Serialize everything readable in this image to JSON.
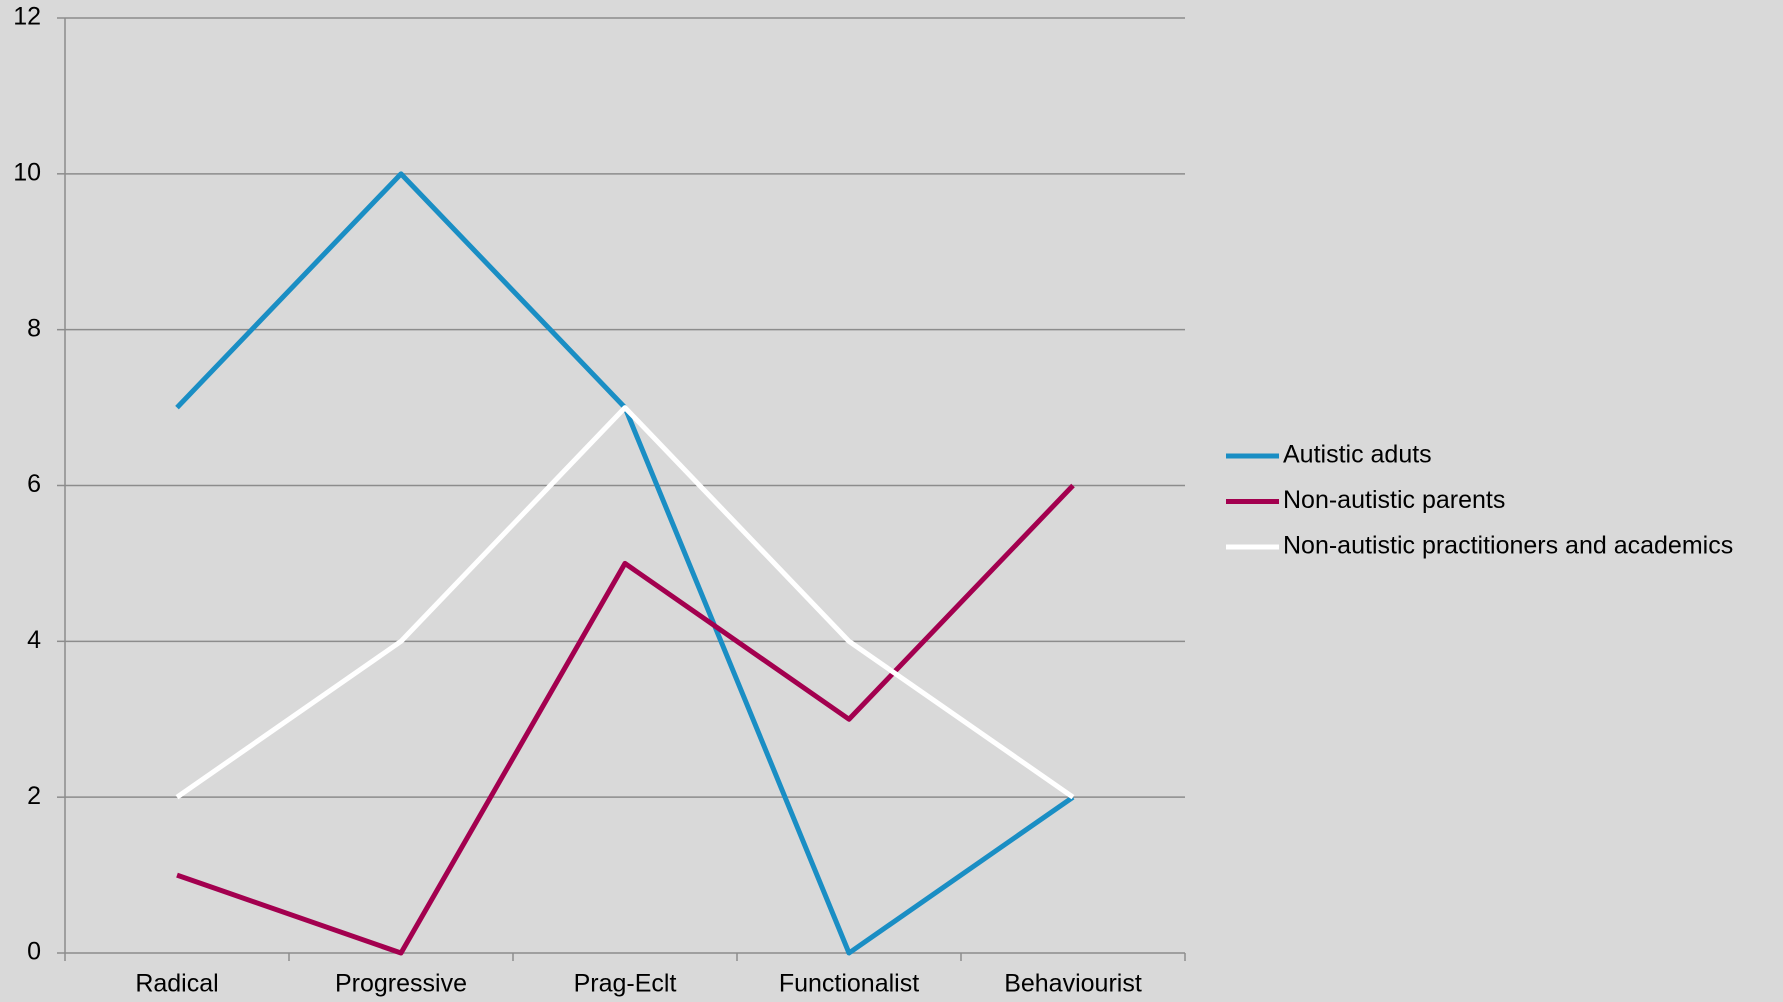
{
  "chart_data": {
    "type": "line",
    "categories": [
      "Radical",
      "Progressive",
      "Prag-Eclt",
      "Functionalist",
      "Behaviourist"
    ],
    "series": [
      {
        "name": "Autistic aduts",
        "color": "#1a8ec4",
        "values": [
          7,
          10,
          7,
          0,
          2
        ]
      },
      {
        "name": "Non-autistic parents",
        "color": "#a3004f",
        "values": [
          1,
          0,
          5,
          3,
          6
        ]
      },
      {
        "name": "Non-autistic practitioners and academics",
        "color": "#ffffff",
        "values": [
          2,
          4,
          7,
          4,
          2
        ]
      }
    ],
    "ylim": [
      0,
      12
    ],
    "yticks": [
      0,
      2,
      4,
      6,
      8,
      10,
      12
    ],
    "grid": true,
    "legend": "right"
  }
}
